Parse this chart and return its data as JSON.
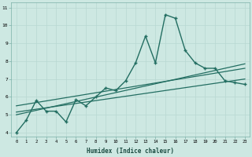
{
  "xlabel": "Humidex (Indice chaleur)",
  "ylabel": "",
  "bg_color": "#cde8e2",
  "line_color": "#236e62",
  "xlim": [
    -0.5,
    23.5
  ],
  "ylim": [
    3.8,
    11.3
  ],
  "xticks": [
    0,
    1,
    2,
    3,
    4,
    5,
    6,
    7,
    8,
    9,
    10,
    11,
    12,
    13,
    14,
    15,
    16,
    17,
    18,
    19,
    20,
    21,
    22,
    23
  ],
  "yticks": [
    4,
    5,
    6,
    7,
    8,
    9,
    10,
    11
  ],
  "main_line_x": [
    0,
    1,
    2,
    3,
    4,
    5,
    6,
    7,
    8,
    9,
    10,
    11,
    12,
    13,
    14,
    15,
    16,
    17,
    18,
    19,
    20,
    21,
    22,
    23
  ],
  "main_line_y": [
    4.0,
    4.7,
    5.8,
    5.2,
    5.2,
    4.6,
    5.85,
    5.5,
    6.0,
    6.5,
    6.35,
    6.9,
    7.9,
    9.4,
    7.9,
    10.6,
    10.4,
    8.6,
    7.9,
    7.6,
    7.6,
    6.9,
    6.8,
    6.7
  ],
  "reg_line1": {
    "x": [
      0,
      23
    ],
    "y": [
      5.15,
      7.0
    ]
  },
  "reg_line2": {
    "x": [
      0,
      23
    ],
    "y": [
      5.5,
      7.6
    ]
  },
  "reg_line3": {
    "x": [
      0,
      23
    ],
    "y": [
      5.0,
      7.85
    ]
  }
}
